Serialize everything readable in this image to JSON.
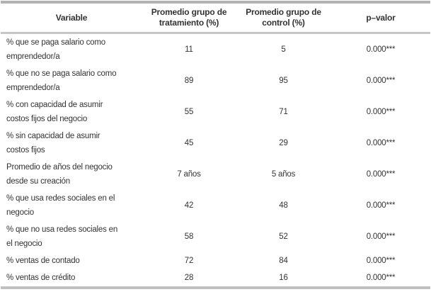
{
  "table": {
    "title": "comparacion-grupo-tratamiento-vs-control",
    "columns": [
      {
        "label": "Variable"
      },
      {
        "label": "Promedio grupo de\ntratamiento (%)"
      },
      {
        "label": "Promedio grupo de\ncontrol (%)"
      },
      {
        "label": "p–valor"
      }
    ],
    "rows": [
      {
        "variable": "% que se paga salario como\nemprendedor/a",
        "treatment": "11",
        "control": "5",
        "p_value": "0.000***"
      },
      {
        "variable": "% que no se paga salario como\nemprendedor/a",
        "treatment": "89",
        "control": "95",
        "p_value": "0.000***"
      },
      {
        "variable": "% con capacidad de asumir\ncostos fijos del negocio",
        "treatment": "55",
        "control": "71",
        "p_value": "0.000***"
      },
      {
        "variable": "% sin capacidad de asumir\ncostos fijos",
        "treatment": "45",
        "control": "29",
        "p_value": "0.000***"
      },
      {
        "variable": "Promedio de años del negocio\ndesde su creación",
        "treatment": "7 años",
        "control": "5 años",
        "p_value": "0.000***"
      },
      {
        "variable": "% que usa redes sociales en el\nnegocio",
        "treatment": "42",
        "control": "48",
        "p_value": "0.000***"
      },
      {
        "variable": "% que no usa redes sociales en\nel negocio",
        "treatment": "58",
        "control": "52",
        "p_value": "0.000***"
      },
      {
        "variable": "% ventas de contado",
        "treatment": "72",
        "control": "84",
        "p_value": "0.000***"
      },
      {
        "variable": "% ventas de crédito",
        "treatment": "28",
        "control": "16",
        "p_value": "0.000***"
      }
    ],
    "colors": {
      "text": "#333333",
      "border_top": "#b2b2b2",
      "border_header": "#c6c6c6",
      "border_bottom": "#c0c0c0"
    }
  }
}
